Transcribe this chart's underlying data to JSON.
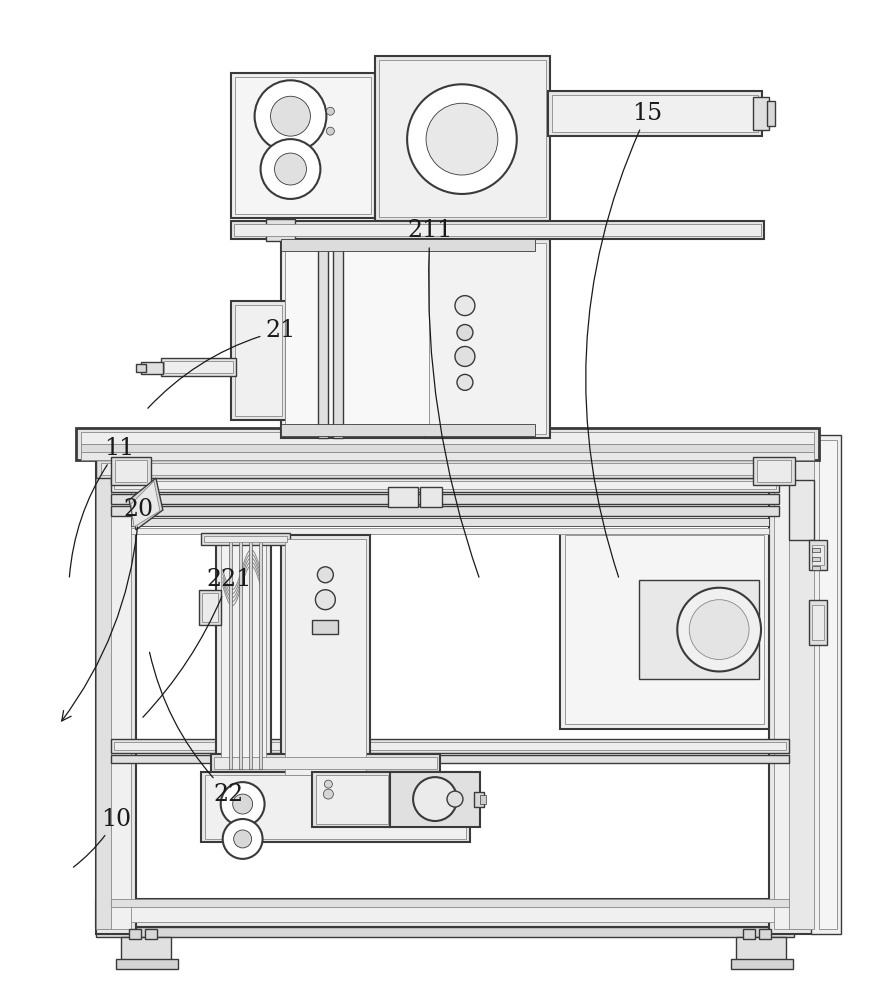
{
  "bg_color": "#ffffff",
  "lc": "#3a3a3a",
  "lc_light": "#888888",
  "lc_mid": "#606060",
  "fc_white": "#ffffff",
  "fc_light": "#f0f0f0",
  "fc_lighter": "#f8f8f8",
  "fc_mid": "#e0e0e0",
  "fc_dark": "#c8c8c8",
  "label_color": "#1a1a1a",
  "label_fontsize": 17,
  "figsize": [
    8.94,
    10.0
  ],
  "dpi": 100
}
